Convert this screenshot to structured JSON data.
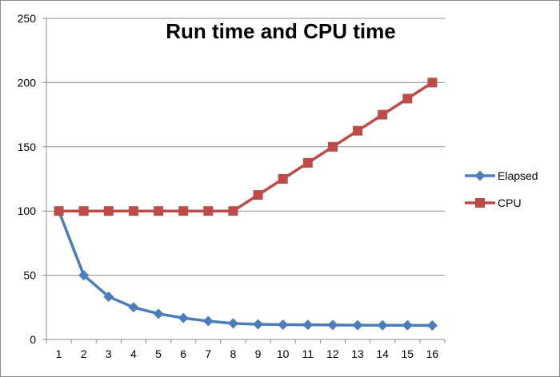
{
  "chart_data": {
    "type": "line",
    "title": "Run time and CPU time",
    "xlabel": "",
    "ylabel": "",
    "x": [
      1,
      2,
      3,
      4,
      5,
      6,
      7,
      8,
      9,
      10,
      11,
      12,
      13,
      14,
      15,
      16
    ],
    "ylim": [
      0,
      250
    ],
    "yticks": [
      0,
      50,
      100,
      150,
      200,
      250
    ],
    "grid": true,
    "legend_position": "right",
    "series": [
      {
        "name": "Elapsed",
        "color": "#4a7ebb",
        "marker": "diamond",
        "values": [
          100,
          50,
          33.3,
          25,
          20,
          16.7,
          14.3,
          12.5,
          11.8,
          11.5,
          11.4,
          11.3,
          11.1,
          11.0,
          11.0,
          10.9
        ]
      },
      {
        "name": "CPU",
        "color": "#be4b48",
        "marker": "square",
        "values": [
          100,
          100,
          100,
          100,
          100,
          100,
          100,
          100,
          112.5,
          125,
          137.5,
          150,
          162.5,
          175,
          187.5,
          200
        ]
      }
    ]
  }
}
